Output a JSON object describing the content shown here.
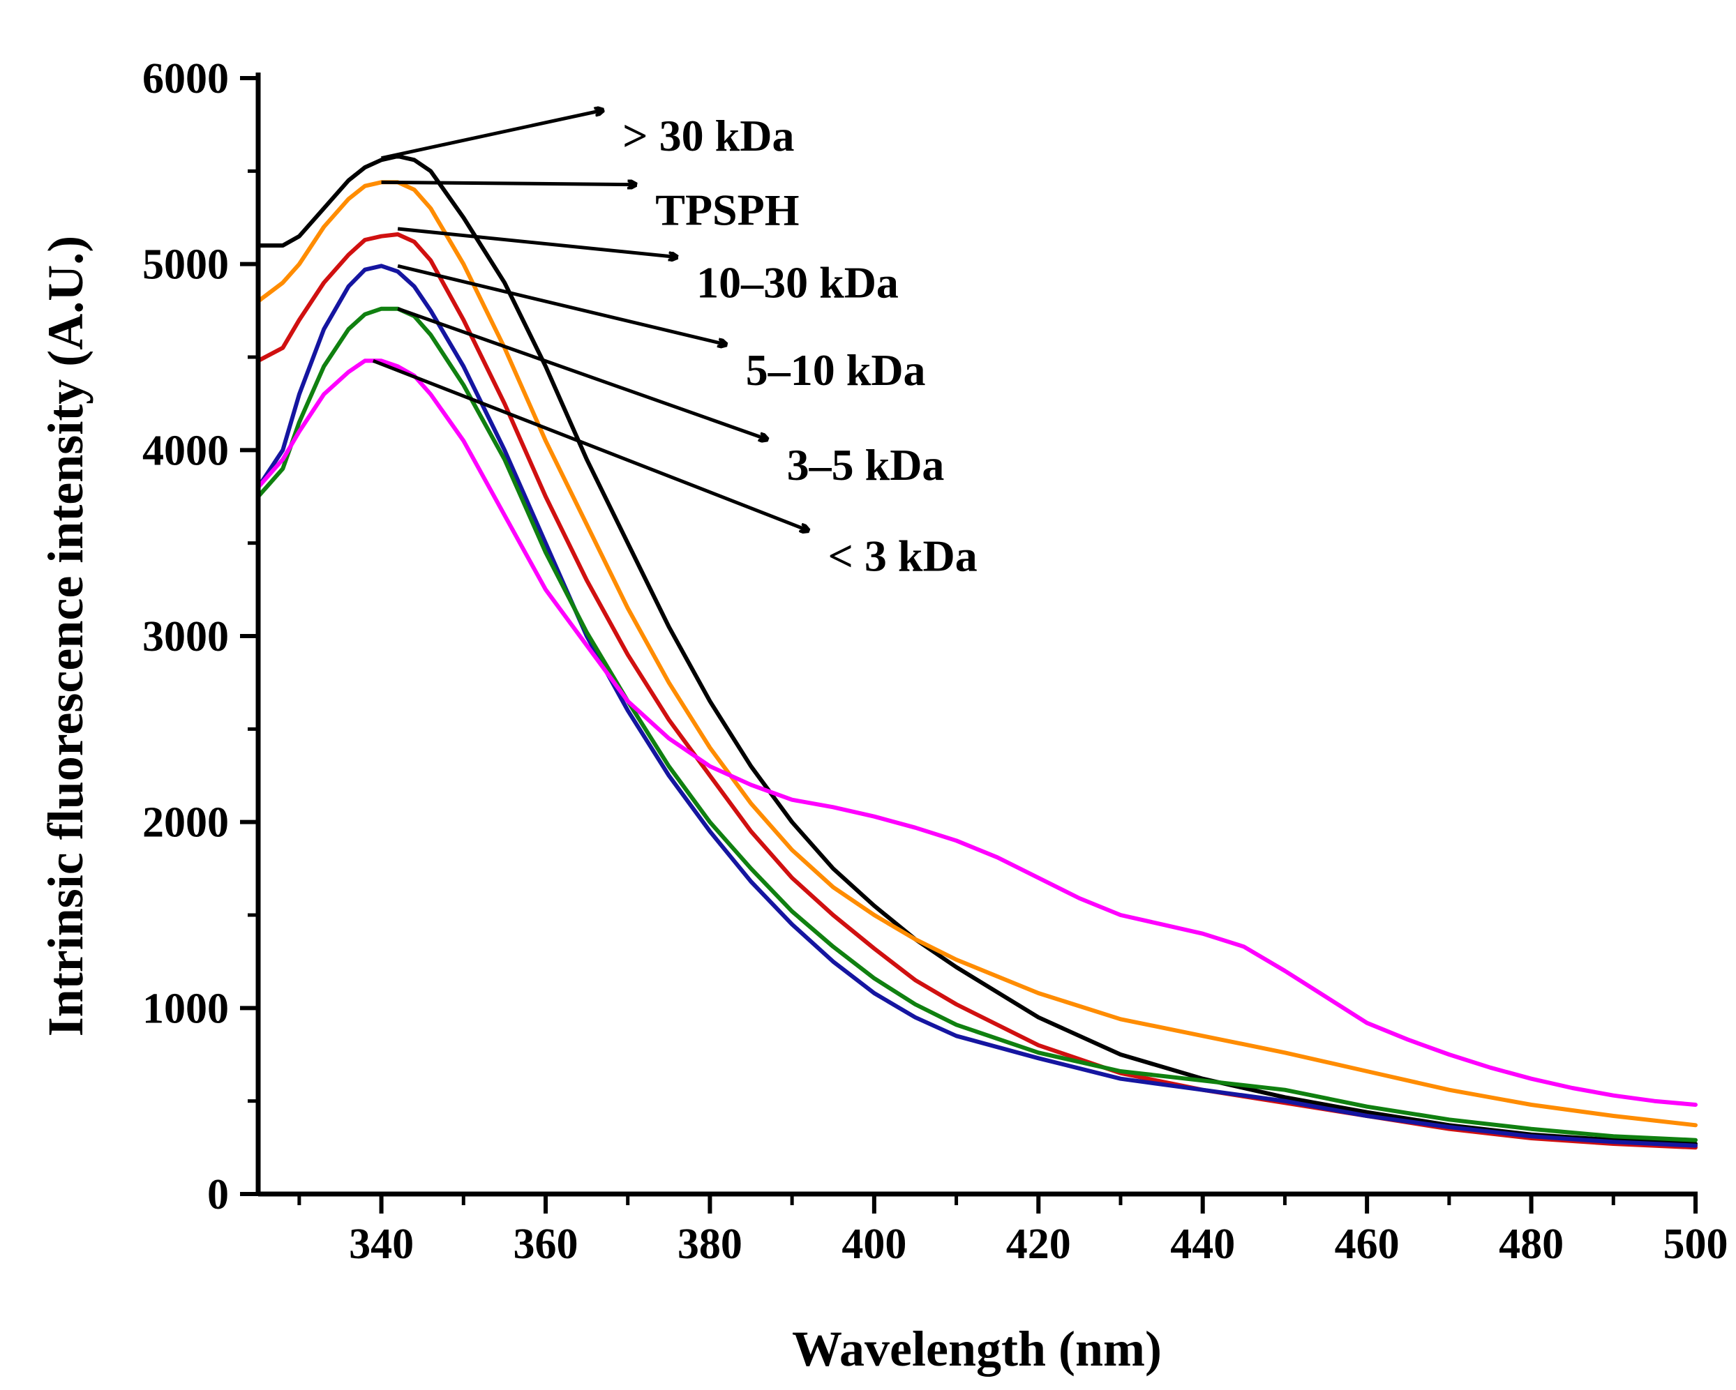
{
  "chart_data": {
    "type": "line",
    "title": "",
    "xlabel": "Wavelength (nm)",
    "ylabel": "Intrinsic fluorescence intensity (A.U.)",
    "xlim": [
      325,
      500
    ],
    "ylim": [
      0,
      6000
    ],
    "x_ticks": [
      340,
      360,
      380,
      400,
      420,
      440,
      460,
      480,
      500
    ],
    "x_tick_labels": [
      "340",
      "360",
      "380",
      "400",
      "420",
      "440",
      "460",
      "480",
      "500"
    ],
    "y_ticks": [
      0,
      1000,
      2000,
      3000,
      4000,
      5000,
      6000
    ],
    "y_tick_labels": [
      "0",
      "1000",
      "2000",
      "3000",
      "4000",
      "5000",
      "6000"
    ],
    "grid": false,
    "series": [
      {
        "name": "> 30 kDa",
        "color": "#000000",
        "x": [
          325,
          328,
          330,
          333,
          336,
          338,
          340,
          342,
          344,
          346,
          350,
          355,
          360,
          365,
          370,
          375,
          380,
          385,
          390,
          395,
          400,
          405,
          410,
          420,
          430,
          440,
          450,
          460,
          470,
          480,
          490,
          500
        ],
        "y": [
          5100,
          5100,
          5150,
          5300,
          5450,
          5520,
          5560,
          5580,
          5560,
          5500,
          5250,
          4900,
          4450,
          3950,
          3500,
          3050,
          2650,
          2300,
          2000,
          1750,
          1550,
          1370,
          1220,
          950,
          750,
          620,
          520,
          440,
          370,
          320,
          290,
          270
        ]
      },
      {
        "name": "TPSPH",
        "color": "#ff8c00",
        "x": [
          325,
          328,
          330,
          333,
          336,
          338,
          340,
          342,
          344,
          346,
          350,
          355,
          360,
          365,
          370,
          375,
          380,
          385,
          390,
          395,
          400,
          405,
          410,
          420,
          430,
          440,
          450,
          460,
          470,
          480,
          490,
          500
        ],
        "y": [
          4800,
          4900,
          5000,
          5200,
          5350,
          5420,
          5440,
          5440,
          5400,
          5300,
          5000,
          4550,
          4050,
          3600,
          3150,
          2750,
          2400,
          2100,
          1850,
          1650,
          1500,
          1370,
          1260,
          1080,
          940,
          850,
          760,
          660,
          560,
          480,
          420,
          370
        ]
      },
      {
        "name": "10–30 kDa",
        "color": "#d01010",
        "x": [
          325,
          328,
          330,
          333,
          336,
          338,
          340,
          342,
          344,
          346,
          350,
          355,
          360,
          365,
          370,
          375,
          380,
          385,
          390,
          395,
          400,
          405,
          410,
          420,
          430,
          440,
          450,
          460,
          470,
          480,
          490,
          500
        ],
        "y": [
          4480,
          4550,
          4700,
          4900,
          5050,
          5130,
          5150,
          5160,
          5120,
          5020,
          4700,
          4250,
          3750,
          3300,
          2900,
          2550,
          2250,
          1950,
          1700,
          1500,
          1320,
          1150,
          1020,
          800,
          650,
          560,
          490,
          420,
          350,
          300,
          270,
          250
        ]
      },
      {
        "name": "5–10 kDa",
        "color": "#1515a0",
        "x": [
          325,
          328,
          330,
          333,
          336,
          338,
          340,
          342,
          344,
          346,
          350,
          355,
          360,
          365,
          370,
          375,
          380,
          385,
          390,
          395,
          400,
          405,
          410,
          420,
          430,
          440,
          450,
          460,
          470,
          480,
          490,
          500
        ],
        "y": [
          3800,
          4000,
          4300,
          4650,
          4880,
          4970,
          4990,
          4960,
          4880,
          4750,
          4450,
          4000,
          3500,
          3000,
          2600,
          2250,
          1950,
          1680,
          1450,
          1250,
          1080,
          950,
          850,
          730,
          620,
          560,
          500,
          420,
          360,
          310,
          280,
          260
        ]
      },
      {
        "name": "3–5 kDa",
        "color": "#108010",
        "x": [
          325,
          328,
          330,
          333,
          336,
          338,
          340,
          342,
          344,
          346,
          350,
          355,
          360,
          365,
          370,
          375,
          380,
          385,
          390,
          395,
          400,
          405,
          410,
          420,
          430,
          440,
          450,
          460,
          470,
          480,
          490,
          500
        ],
        "y": [
          3750,
          3900,
          4150,
          4450,
          4650,
          4730,
          4760,
          4760,
          4720,
          4620,
          4350,
          3950,
          3450,
          3020,
          2650,
          2300,
          2000,
          1750,
          1520,
          1330,
          1160,
          1020,
          910,
          760,
          660,
          610,
          560,
          470,
          400,
          350,
          310,
          290
        ]
      },
      {
        "name": "< 3 kDa",
        "color": "#ff00ff",
        "x": [
          325,
          328,
          330,
          333,
          336,
          338,
          340,
          342,
          344,
          346,
          350,
          355,
          360,
          365,
          370,
          375,
          380,
          385,
          390,
          395,
          400,
          405,
          410,
          415,
          420,
          425,
          430,
          435,
          440,
          445,
          450,
          455,
          460,
          465,
          470,
          475,
          480,
          485,
          490,
          495,
          500
        ],
        "y": [
          3800,
          3950,
          4100,
          4300,
          4420,
          4480,
          4480,
          4450,
          4400,
          4300,
          4050,
          3650,
          3250,
          2950,
          2650,
          2450,
          2300,
          2200,
          2120,
          2080,
          2030,
          1970,
          1900,
          1810,
          1700,
          1590,
          1500,
          1450,
          1400,
          1330,
          1200,
          1060,
          920,
          830,
          750,
          680,
          620,
          570,
          530,
          500,
          480
        ]
      }
    ],
    "annotations": [
      {
        "text": "> 30 kDa",
        "points_to": "> 30 kDa",
        "at_x": 340,
        "at_y": 5570,
        "label_x": 368,
        "label_y": 5790
      },
      {
        "text": "TPSPH",
        "points_to": "TPSPH",
        "at_x": 340,
        "at_y": 5440,
        "label_x": 372,
        "label_y": 5390
      },
      {
        "text": "10–30 kDa",
        "points_to": "10–30 kDa",
        "at_x": 342,
        "at_y": 5190,
        "label_x": 377,
        "label_y": 5000
      },
      {
        "text": "5–10 kDa",
        "points_to": "5–10 kDa",
        "at_x": 342,
        "at_y": 4990,
        "label_x": 383,
        "label_y": 4530
      },
      {
        "text": "3–5 kDa",
        "points_to": "3–5 kDa",
        "at_x": 342,
        "at_y": 4760,
        "label_x": 388,
        "label_y": 4020
      },
      {
        "text": "< 3 kDa",
        "points_to": "< 3 kDa",
        "at_x": 339,
        "at_y": 4480,
        "label_x": 393,
        "label_y": 3530
      }
    ]
  }
}
